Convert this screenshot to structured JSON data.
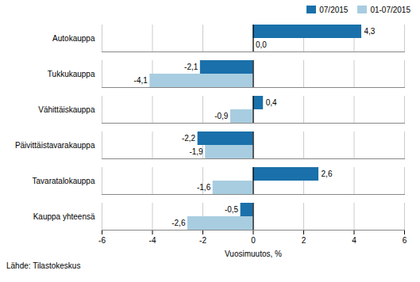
{
  "chart_data": {
    "type": "bar",
    "orientation": "horizontal",
    "categories": [
      "Autokauppa",
      "Tukkukauppa",
      "Vähittäiskauppa",
      "Päivittäistavarakauppa",
      "Tavaratalokauppa",
      "Kauppa yhteensä"
    ],
    "series": [
      {
        "name": "07/2015",
        "color": "#1a70aa",
        "values": [
          4.3,
          -2.1,
          0.4,
          -2.2,
          2.6,
          -0.5
        ],
        "value_labels": [
          "4,3",
          "-2,1",
          "0,4",
          "-2,2",
          "2,6",
          "-0,5"
        ]
      },
      {
        "name": "01-07/2015",
        "color": "#a8cde0",
        "values": [
          0.0,
          -4.1,
          -0.9,
          -1.9,
          -1.6,
          -2.6
        ],
        "value_labels": [
          "0,0",
          "-4,1",
          "-0,9",
          "-1,9",
          "-1,6",
          "-2,6"
        ]
      }
    ],
    "xlabel": "Vuosimuutos, %",
    "xlim": [
      -6,
      6
    ],
    "xticks": [
      -6,
      -4,
      -2,
      0,
      2,
      4,
      6
    ],
    "grid": true,
    "data_labels": true,
    "legend": "upper right",
    "annotations": [
      "Lähde: Tilastokeskus"
    ]
  }
}
